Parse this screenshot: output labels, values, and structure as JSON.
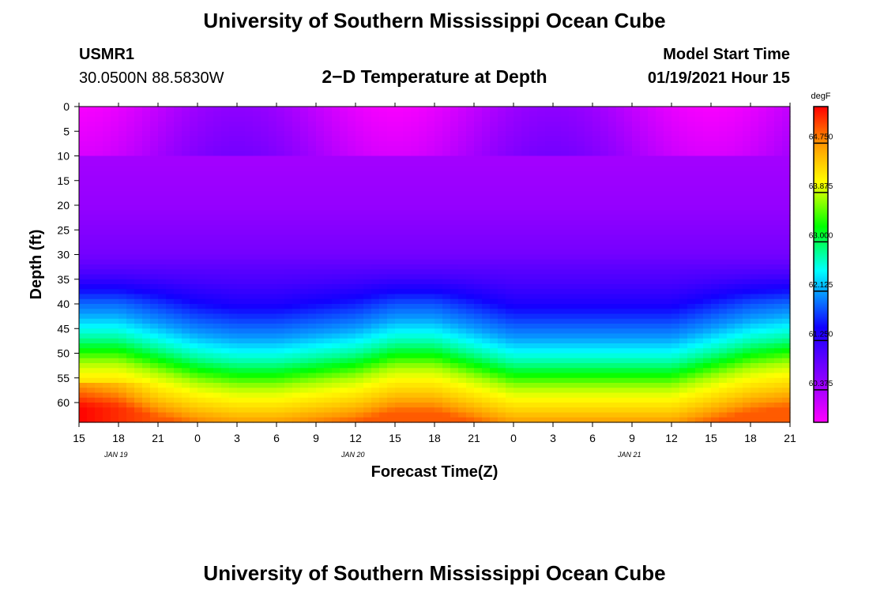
{
  "header": {
    "title": "University of Southern Mississippi Ocean Cube",
    "station_id": "USMR1",
    "coordinates": "30.0500N 88.5830W",
    "subtitle": "2−D Temperature at Depth",
    "model_start_label": "Model Start Time",
    "model_start_value": "01/19/2021 Hour 15"
  },
  "footer": {
    "title": "University of Southern Mississippi Ocean Cube"
  },
  "chart_data": {
    "type": "heatmap",
    "title": "2−D Temperature at Depth",
    "xlabel": "Forecast Time(Z)",
    "ylabel": "Depth (ft)",
    "x_tick_labels": [
      "15",
      "18",
      "21",
      "0",
      "3",
      "6",
      "9",
      "12",
      "15",
      "18",
      "21",
      "0",
      "3",
      "6",
      "9",
      "12",
      "15",
      "18",
      "21"
    ],
    "x_hours_from_start": [
      0,
      3,
      6,
      9,
      12,
      15,
      18,
      21,
      24,
      27,
      30,
      33,
      36,
      39,
      42,
      45,
      48,
      51,
      54
    ],
    "x_range_hours": [
      0,
      54
    ],
    "date_labels": [
      {
        "label": "JAN 19",
        "hour": 3
      },
      {
        "label": "JAN 20",
        "hour": 21
      },
      {
        "label": "JAN 21",
        "hour": 42
      }
    ],
    "y_ticks": [
      0,
      5,
      10,
      15,
      20,
      25,
      30,
      35,
      40,
      45,
      50,
      55,
      60
    ],
    "y_range": [
      0,
      64
    ],
    "y_inverted": true,
    "colorbar": {
      "unit": "degF",
      "range": [
        59.8,
        65.4
      ],
      "ticks": [
        "60.375",
        "61.250",
        "62.125",
        "63.000",
        "63.875",
        "64.750"
      ],
      "colors": [
        "#ff00ff",
        "#9900ff",
        "#1100ff",
        "#00ffff",
        "#00ff00",
        "#ffff00",
        "#ff9900",
        "#ff0000"
      ]
    },
    "thermocline_depth_vs_hour": {
      "hours": [
        0,
        3,
        6,
        9,
        12,
        15,
        18,
        21,
        24,
        27,
        30,
        33,
        36,
        39,
        42,
        45,
        48,
        51,
        54
      ],
      "depth_ft": [
        39,
        39,
        41,
        43,
        44,
        44,
        43,
        42,
        40,
        40,
        42,
        44,
        44,
        44,
        44,
        44,
        42,
        40,
        39
      ]
    },
    "approx_temperature_profile": {
      "depth_ft": [
        0,
        10,
        20,
        30,
        35,
        40,
        45,
        50,
        55,
        60,
        64
      ],
      "degF": [
        60.2,
        60.4,
        60.5,
        60.75,
        61.1,
        61.6,
        62.1,
        62.8,
        63.8,
        64.4,
        65.0
      ]
    }
  }
}
